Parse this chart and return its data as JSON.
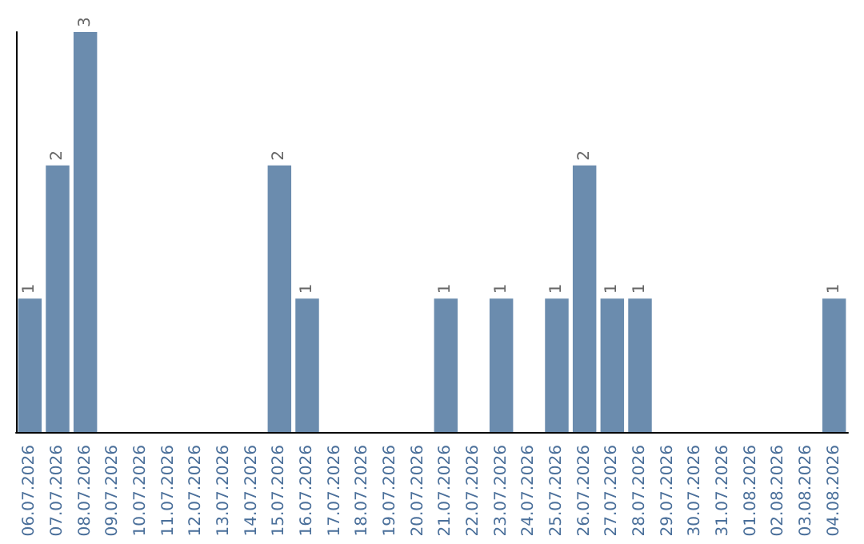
{
  "chart_data": {
    "type": "bar",
    "categories": [
      "06.07.2026",
      "07.07.2026",
      "08.07.2026",
      "09.07.2026",
      "10.07.2026",
      "11.07.2026",
      "12.07.2026",
      "13.07.2026",
      "14.07.2026",
      "15.07.2026",
      "16.07.2026",
      "17.07.2026",
      "18.07.2026",
      "19.07.2026",
      "20.07.2026",
      "21.07.2026",
      "22.07.2026",
      "23.07.2026",
      "24.07.2026",
      "25.07.2026",
      "26.07.2026",
      "27.07.2026",
      "28.07.2026",
      "29.07.2026",
      "30.07.2026",
      "31.07.2026",
      "01.08.2026",
      "02.08.2026",
      "03.08.2026",
      "04.08.2026"
    ],
    "values": [
      1,
      2,
      3,
      0,
      0,
      0,
      0,
      0,
      0,
      2,
      1,
      0,
      0,
      0,
      0,
      1,
      0,
      1,
      0,
      1,
      2,
      1,
      1,
      0,
      0,
      0,
      0,
      0,
      0,
      1
    ],
    "value_labels": [
      "1",
      "2",
      "3",
      null,
      null,
      null,
      null,
      null,
      null,
      "2",
      "1",
      null,
      null,
      null,
      null,
      "1",
      null,
      "1",
      null,
      "1",
      "2",
      "1",
      "1",
      null,
      null,
      null,
      null,
      null,
      null,
      "1"
    ],
    "color": "#6b8cae",
    "grid": false,
    "tick_labels": "x"
  }
}
